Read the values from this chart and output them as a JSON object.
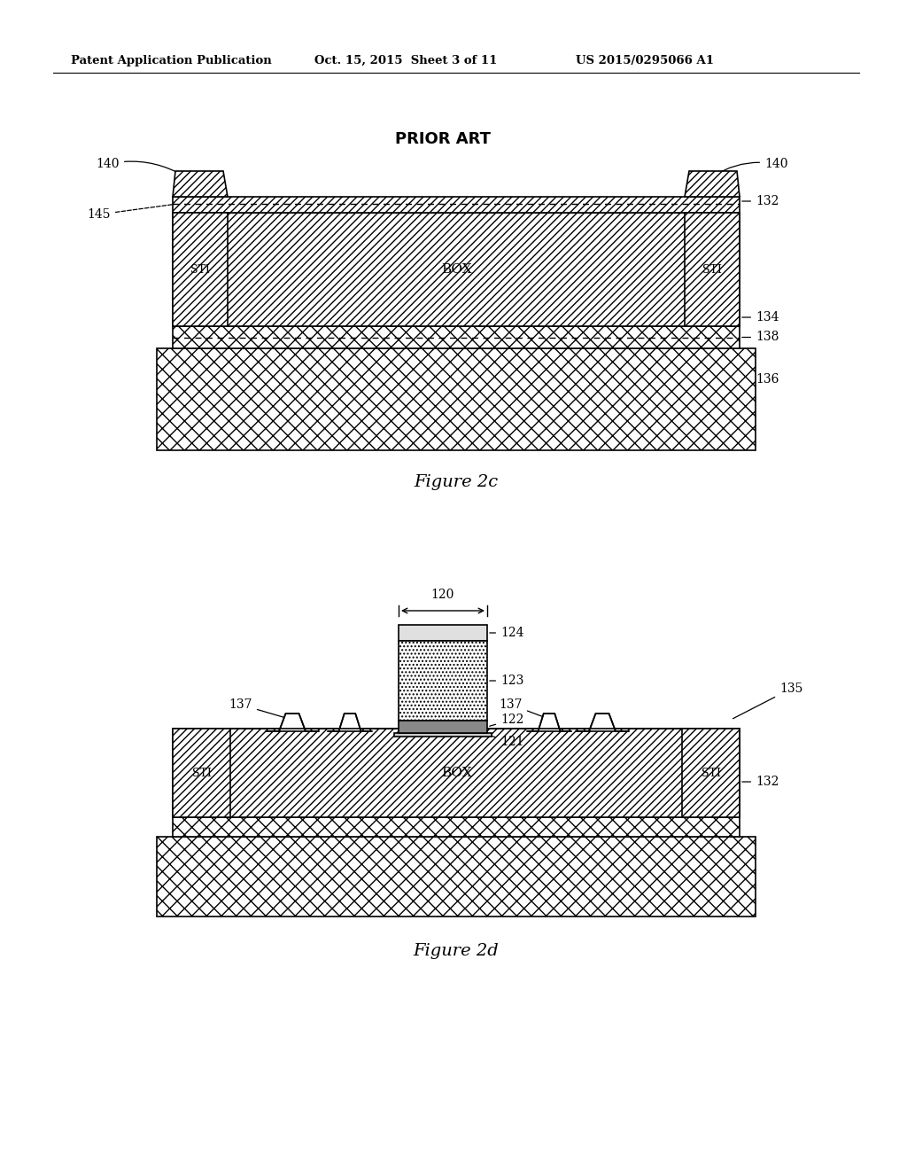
{
  "header_left": "Patent Application Publication",
  "header_mid": "Oct. 15, 2015  Sheet 3 of 11",
  "header_right": "US 2015/0295066 A1",
  "prior_art_label": "PRIOR ART",
  "fig2c_label": "Figure 2c",
  "fig2d_label": "Figure 2d",
  "bg_color": "#ffffff",
  "line_color": "#000000"
}
